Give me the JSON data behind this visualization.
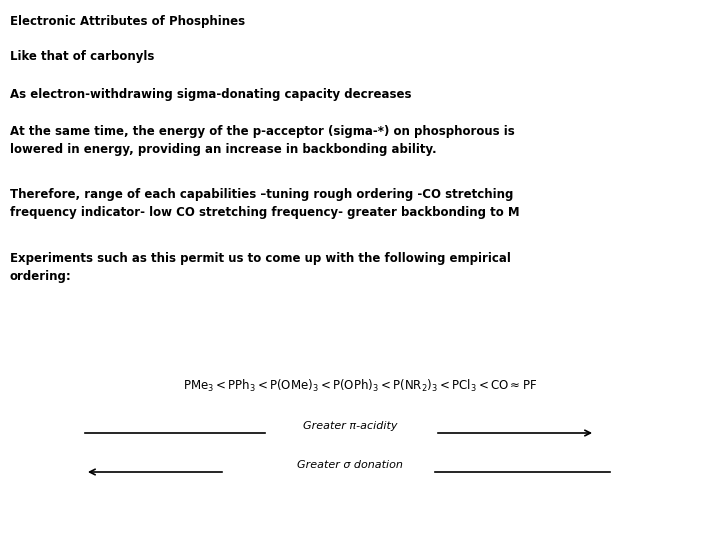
{
  "background_color": "#ffffff",
  "title": "Electronic Attributes of Phosphines",
  "line1": "Like that of carbonyls",
  "line2": "As electron-withdrawing sigma-donating capacity decreases",
  "line3": "At the same time, the energy of the p-acceptor (sigma-*) on phosphorous is\nlowered in energy, providing an increase in backbonding ability.",
  "line4": "Therefore, range of each capabilities –tuning rough ordering -CO stretching\nfrequency indicator- low CO stretching frequency- greater backbonding to M",
  "line5": "Experiments such as this permit us to come up with the following empirical\nordering:",
  "formula": "$\\mathrm{PMe_3 < PPh_3 < P(OMe)_3 < P(OPh)_3 < P(NR_2)_3 < PCl_3 < CO \\approx PF}$",
  "arrow1_label": "Greater π-acidity",
  "arrow2_label": "Greater σ donation",
  "text_color": "#000000",
  "font_size_title": 8.5,
  "font_size_body": 8.5,
  "font_size_formula": 8.5,
  "font_size_arrow": 8.0
}
